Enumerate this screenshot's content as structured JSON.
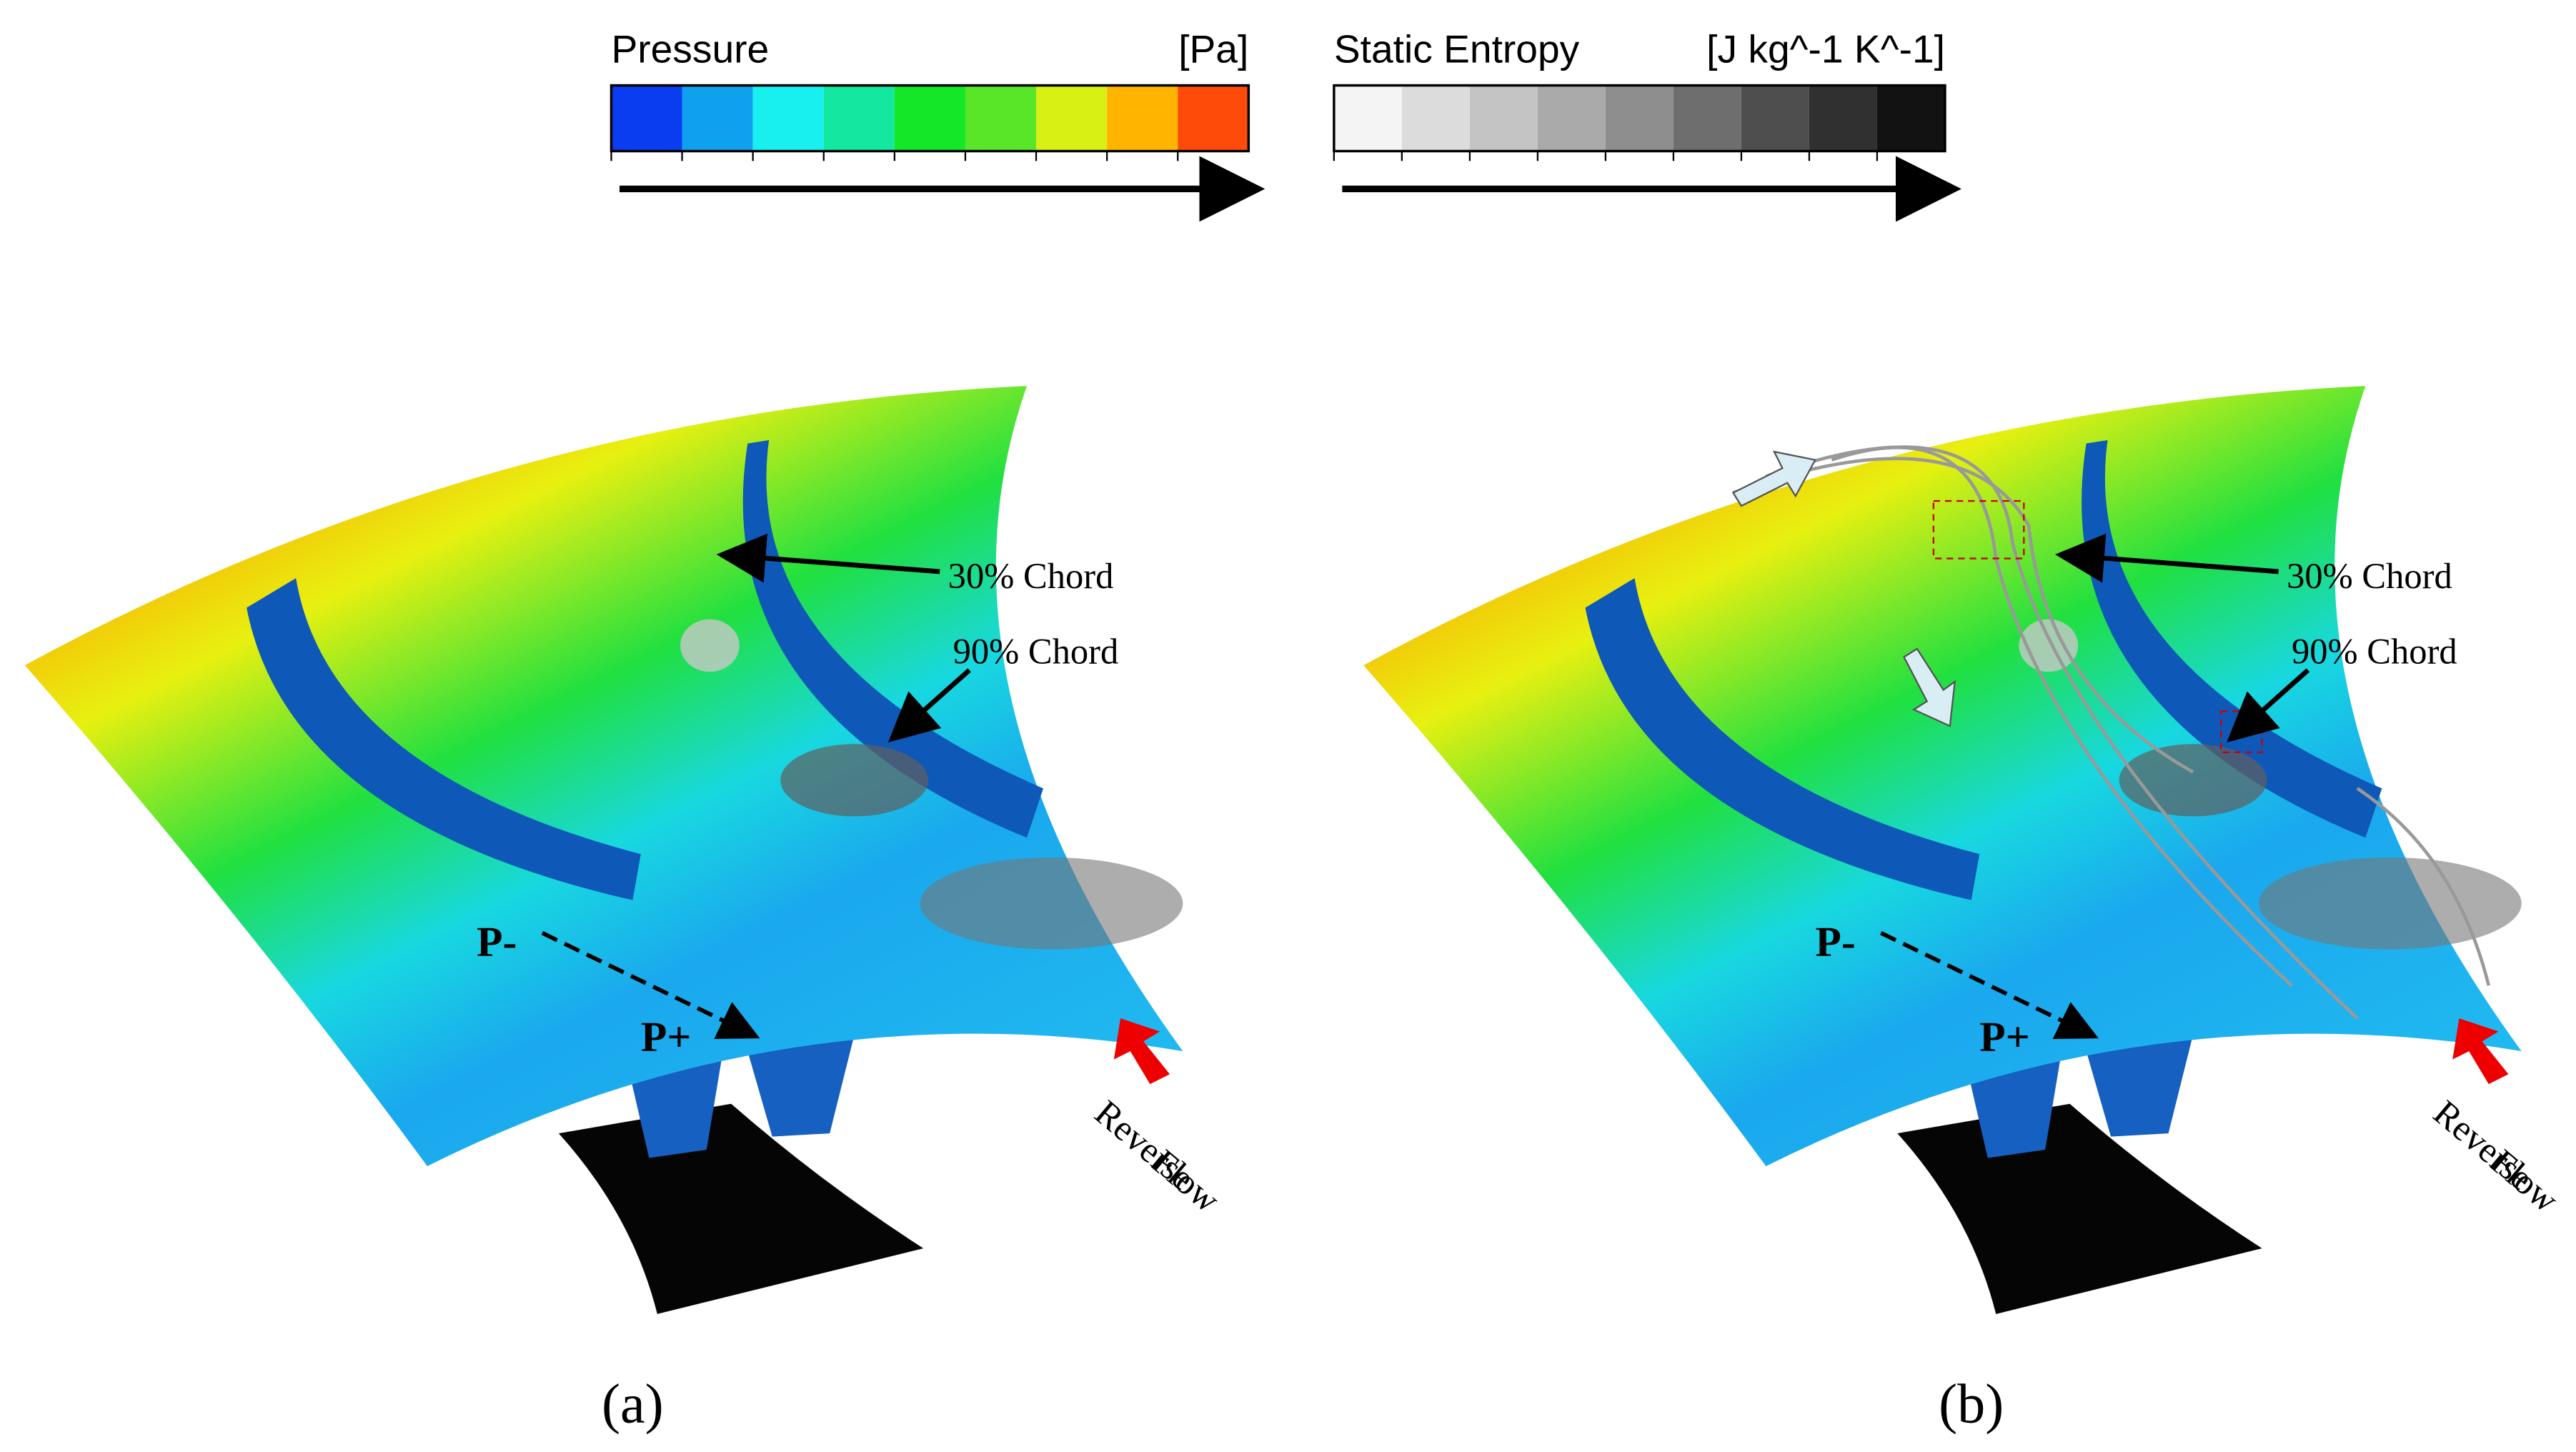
{
  "legends": [
    {
      "title": "Pressure",
      "unit": "[Pa]",
      "colors": [
        "#0a3cf0",
        "#0fa0f0",
        "#18f0f0",
        "#14e8a0",
        "#14e628",
        "#5ae628",
        "#d8f014",
        "#ffb400",
        "#ff4b0a"
      ]
    },
    {
      "title": "Static Entropy",
      "unit": "[J kg^-1 K^-1]",
      "colors": [
        "#f4f4f4",
        "#dcdcdc",
        "#c4c4c4",
        "#aaaaaa",
        "#8e8e8e",
        "#6e6e6e",
        "#4e4e4e",
        "#303030",
        "#121212"
      ]
    }
  ],
  "panels": [
    {
      "labels": {
        "chord_30": "30% Chord",
        "chord_90": "90% Chord",
        "p_minus": "P-",
        "p_plus": "P+",
        "reverse_flow": [
          "Reverse",
          "Flow"
        ]
      },
      "caption": "(a)"
    },
    {
      "labels": {
        "chord_30": "30% Chord",
        "chord_90": "90% Chord",
        "p_minus": "P-",
        "p_plus": "P+",
        "reverse_flow": [
          "Reverse",
          "Flow"
        ]
      },
      "caption": "(b)"
    }
  ]
}
